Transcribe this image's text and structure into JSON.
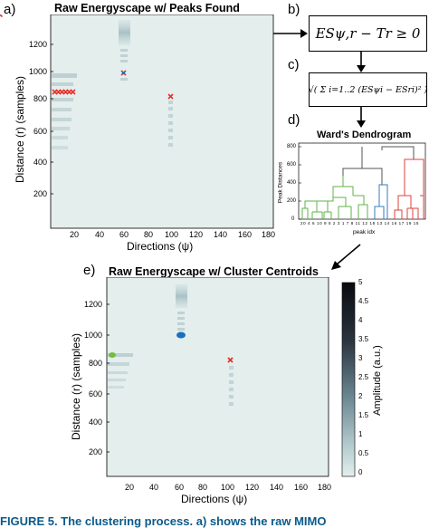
{
  "panels": {
    "a": {
      "letter": "a)",
      "title": "Raw Energyscape w/ Peaks Found",
      "ylabel": "Distance (r) (samples)",
      "xlabel": "Directions (ψ)",
      "yticks": [
        "1200",
        "1000",
        "800",
        "600",
        "400",
        "200"
      ],
      "xticks": [
        "20",
        "40",
        "60",
        "80",
        "100",
        "120",
        "140",
        "160",
        "180"
      ]
    },
    "b": {
      "letter": "b)",
      "equation": "ESψ,r − Tr ≥ 0"
    },
    "c": {
      "letter": "c)",
      "equation": "√( Σ i=1..2 (ESψi − ESri)² )"
    },
    "d": {
      "letter": "d)",
      "title": "Ward's Dendrogram",
      "ylabel": "Peak Distances",
      "xlabel": "peak idx",
      "yticks": [
        "800",
        "600",
        "400",
        "200",
        "0"
      ],
      "leaf_labels": "20 4 6 10 9 5 2 3 1 7 8 11 12 18 13 14 16 17 19 15"
    },
    "e": {
      "letter": "e)",
      "title": "Raw Energyscape w/ Cluster Centroids",
      "ylabel": "Distance (r) (samples)",
      "xlabel": "Directions (ψ)",
      "yticks": [
        "1200",
        "1000",
        "800",
        "600",
        "400",
        "200"
      ],
      "xticks": [
        "20",
        "40",
        "60",
        "80",
        "100",
        "120",
        "140",
        "160",
        "180"
      ],
      "colorbar_label": "Amplitude (a.u.)",
      "colorbar_ticks": [
        "5",
        "4.5",
        "4",
        "3.5",
        "3",
        "2.5",
        "2",
        "1.5",
        "1",
        "0.5",
        "0"
      ]
    }
  },
  "caption": "FIGURE 5. The clustering process. a) shows the raw MIMO",
  "colors": {
    "heat_bg": "#e3eeed",
    "peak_red": "#e8302a",
    "centroid_blue": "#1a6fc2",
    "centroid_green": "#6fbf3a",
    "dendro_green": "#5fb34a",
    "dendro_blue": "#3a7bbf",
    "dendro_red": "#e0403a"
  }
}
